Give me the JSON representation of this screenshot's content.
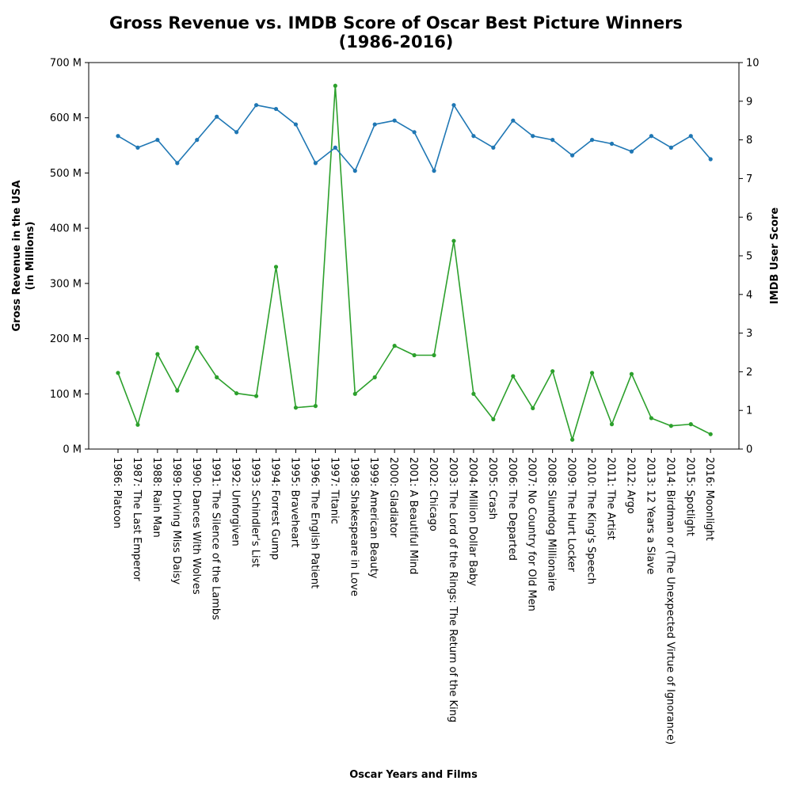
{
  "chart_data": {
    "type": "line",
    "title": "Gross Revenue vs. IMDB Score of Oscar Best Picture Winners",
    "subtitle": "(1986-2016)",
    "xlabel": "Oscar Years and Films",
    "ylabel_left": "Gross Revenue in the USA",
    "ylabel_left_sub": "(in Millions)",
    "ylabel_right": "IMDB User Score",
    "ylim_left": [
      0,
      700
    ],
    "ylim_right": [
      0,
      10
    ],
    "left_ticks": [
      "0 M",
      "100 M",
      "200 M",
      "300 M",
      "400 M",
      "500 M",
      "600 M",
      "700 M"
    ],
    "right_ticks": [
      "0",
      "1",
      "2",
      "3",
      "4",
      "5",
      "6",
      "7",
      "8",
      "9",
      "10"
    ],
    "grid": false,
    "categories": [
      "1986: Platoon",
      "1987: The Last Emperor",
      "1988: Rain Man",
      "1989: Driving Miss Daisy",
      "1990: Dances With Wolves",
      "1991: The Silence of the Lambs",
      "1992: Unforgiven",
      "1993: Schindler's List",
      "1994: Forrest Gump",
      "1995: Braveheart",
      "1996: The English Patient",
      "1997: Titanic",
      "1998: Shakespeare in Love",
      "1999: American Beauty",
      "2000: Gladiator",
      "2001: A Beautiful Mind",
      "2002: Chicago",
      "2003: The Lord of the Rings: The Return of the King",
      "2004: Million Dollar Baby",
      "2005: Crash",
      "2006: The Departed",
      "2007: No Country for Old Men",
      "2008: Slumdog Millionaire",
      "2009: The Hurt Locker",
      "2010: The King's Speech",
      "2011: The Artist",
      "2012: Argo",
      "2013: 12 Years a Slave",
      "2014: Birdman or (The Unexpected Virtue of Ignorance)",
      "2015: Spotlight",
      "2016: Moonlight"
    ],
    "series": [
      {
        "axis": "left",
        "color": "#2ca02c",
        "values": [
          138,
          44,
          172,
          106,
          184,
          130,
          101,
          96,
          330,
          75,
          78,
          658,
          100,
          130,
          187,
          170,
          170,
          377,
          100,
          54,
          132,
          74,
          141,
          17,
          138,
          45,
          136,
          56,
          42,
          45,
          27
        ]
      },
      {
        "axis": "right",
        "color": "#1f77b4",
        "values": [
          8.1,
          7.8,
          8.0,
          7.4,
          8.0,
          8.6,
          8.2,
          8.9,
          8.8,
          8.4,
          7.4,
          7.8,
          7.2,
          8.4,
          8.5,
          8.2,
          7.2,
          8.9,
          8.1,
          7.8,
          8.5,
          8.1,
          8.0,
          7.6,
          8.0,
          7.9,
          7.7,
          8.1,
          7.8,
          8.1,
          7.5
        ]
      }
    ]
  }
}
